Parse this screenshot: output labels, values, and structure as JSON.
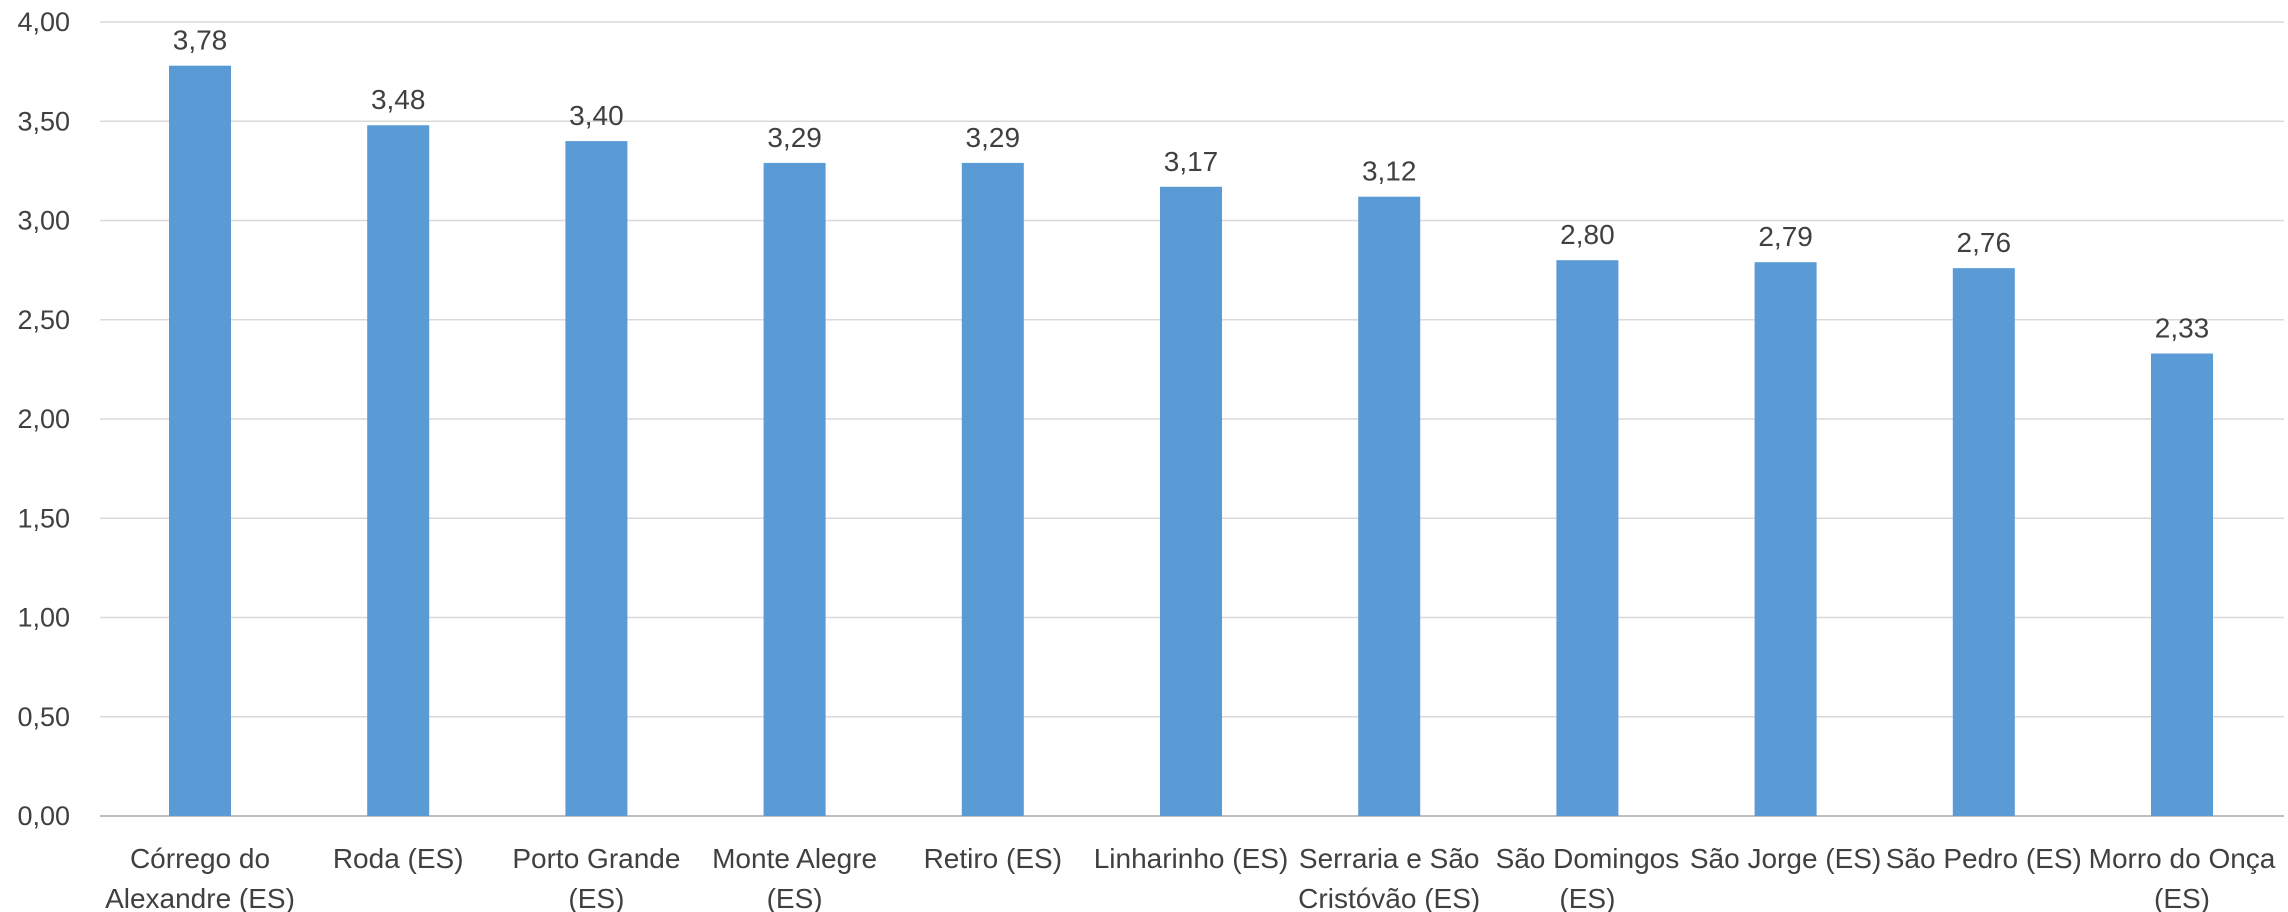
{
  "chart_data": {
    "type": "bar",
    "title": "",
    "xlabel": "",
    "ylabel": "",
    "ylim": [
      0,
      4
    ],
    "yticks": [
      "0,00",
      "0,50",
      "1,00",
      "1,50",
      "2,00",
      "2,50",
      "3,00",
      "3,50",
      "4,00"
    ],
    "grid": true,
    "legend": "none",
    "bar_color": "#5b9bd5",
    "categories": [
      [
        "Córrego do",
        "Alexandre (ES)"
      ],
      [
        "Roda (ES)"
      ],
      [
        "Porto Grande",
        "(ES)"
      ],
      [
        "Monte Alegre",
        "(ES)"
      ],
      [
        "Retiro (ES)"
      ],
      [
        "Linharinho (ES)"
      ],
      [
        "Serraria e São",
        "Cristóvão (ES)"
      ],
      [
        "São Domingos",
        "(ES)"
      ],
      [
        "São Jorge (ES)"
      ],
      [
        "São Pedro (ES)"
      ],
      [
        "Morro do Onça",
        "(ES)"
      ]
    ],
    "values": [
      3.78,
      3.48,
      3.4,
      3.29,
      3.29,
      3.17,
      3.12,
      2.8,
      2.79,
      2.76,
      2.33
    ],
    "data_labels": [
      "3,78",
      "3,48",
      "3,40",
      "3,29",
      "3,29",
      "3,17",
      "3,12",
      "2,80",
      "2,79",
      "2,76",
      "2,33"
    ]
  }
}
